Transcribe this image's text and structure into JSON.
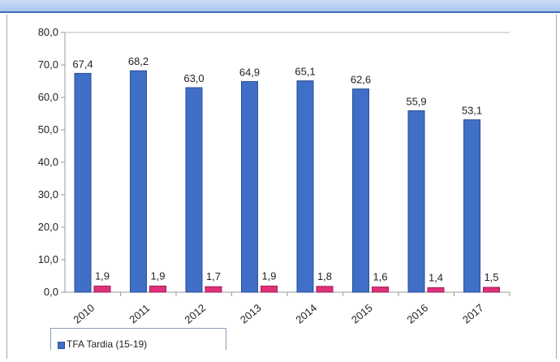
{
  "chart_data": {
    "type": "bar",
    "categories": [
      "2010",
      "2011",
      "2012",
      "2013",
      "2014",
      "2015",
      "2016",
      "2017"
    ],
    "series": [
      {
        "name": "TFA Tardia (15-19)",
        "color": "#3f6fc6",
        "values": [
          67.4,
          68.2,
          63.0,
          64.9,
          65.1,
          62.6,
          55.9,
          53.1
        ],
        "labels": [
          "67,4",
          "68,2",
          "63,0",
          "64,9",
          "65,1",
          "62,6",
          "55,9",
          "53,1"
        ]
      },
      {
        "color": "#e0307a",
        "values": [
          1.9,
          1.9,
          1.7,
          1.9,
          1.8,
          1.6,
          1.4,
          1.5
        ],
        "labels": [
          "1,9",
          "1,9",
          "1,7",
          "1,9",
          "1,8",
          "1,6",
          "1,4",
          "1,5"
        ]
      }
    ],
    "yticks": [
      "0,0",
      "10,0",
      "20,0",
      "30,0",
      "40,0",
      "50,0",
      "60,0",
      "70,0",
      "80,0"
    ],
    "ylim": [
      0,
      80
    ],
    "grid": false,
    "legend_position": "bottom-left"
  }
}
